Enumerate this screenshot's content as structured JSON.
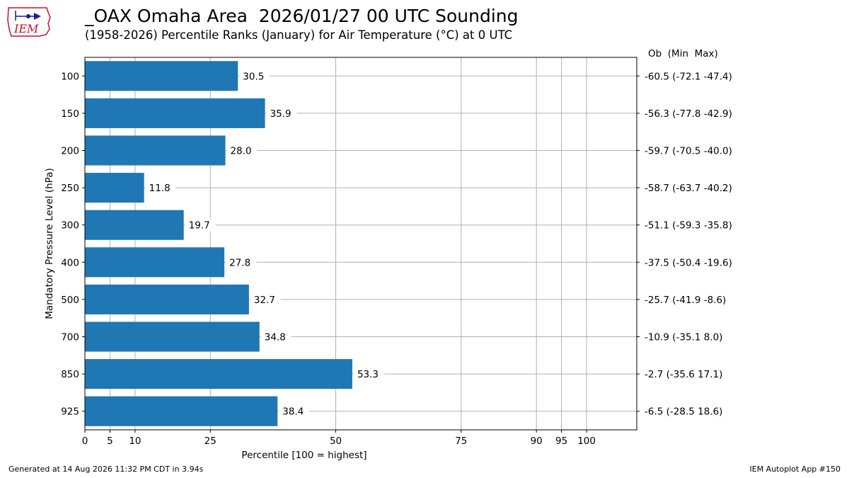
{
  "header": {
    "logo_text": "IEM",
    "title": "_OAX Omaha Area  2026/01/27 00 UTC Sounding",
    "subtitle": "(1958-2026) Percentile Ranks (January) for Air Temperature (°C) at 0 UTC"
  },
  "footer": {
    "generated": "Generated at 14 Aug 2026 11:32 PM CDT in 3.94s",
    "app": "IEM Autoplot App #150"
  },
  "colors": {
    "bar": "#1f77b4",
    "grid": "#b0b0b0"
  },
  "chart_data": {
    "type": "bar",
    "orientation": "horizontal",
    "xlabel": "Percentile [100 = highest]",
    "ylabel": "Mandatory Pressure Level (hPa)",
    "xlim": [
      0,
      110
    ],
    "xticks": [
      0,
      5,
      10,
      25,
      50,
      75,
      90,
      95,
      100
    ],
    "right_header": "Ob  (Min  Max)",
    "grid": true,
    "categories": [
      "100",
      "150",
      "200",
      "250",
      "300",
      "400",
      "500",
      "700",
      "850",
      "925"
    ],
    "values": [
      30.5,
      35.9,
      28.0,
      11.8,
      19.7,
      27.8,
      32.7,
      34.8,
      53.3,
      38.4
    ],
    "value_labels": [
      "30.5",
      "35.9",
      "28.0",
      "11.8",
      "19.7",
      "27.8",
      "32.7",
      "34.8",
      "53.3",
      "38.4"
    ],
    "right_labels": [
      "-60.5 (-72.1 -47.4)",
      "-56.3 (-77.8 -42.9)",
      "-59.7 (-70.5 -40.0)",
      "-58.7 (-63.7 -40.2)",
      "-51.1 (-59.3 -35.8)",
      "-37.5 (-50.4 -19.6)",
      "-25.7 (-41.9 -8.6)",
      "-10.9 (-35.1 8.0)",
      "-2.7 (-35.6 17.1)",
      "-6.5 (-28.5 18.6)"
    ]
  }
}
